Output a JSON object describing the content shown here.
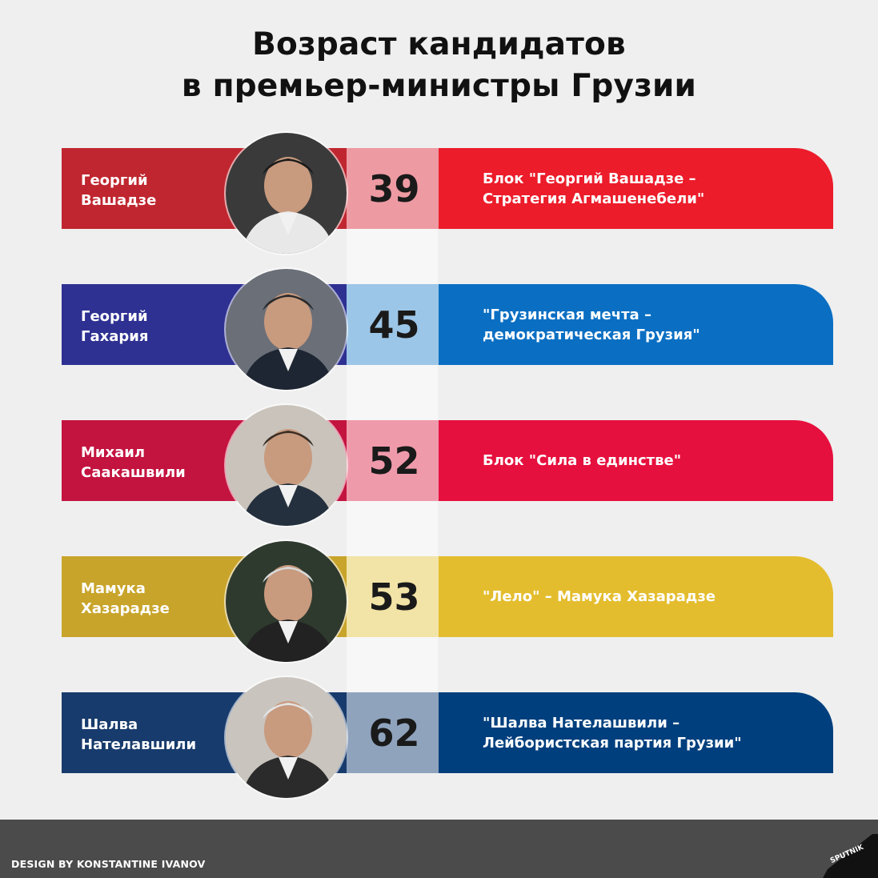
{
  "title": {
    "line1": "Возраст кандидатов",
    "line2": "в премьер-министры Грузии"
  },
  "candidates": [
    {
      "name_line1": "Георгий",
      "name_line2": "Вашадзе",
      "age": "39",
      "party_line1": "Блок \"Георгий Вашадзе –",
      "party_line2": "Стратегия Агмашенебели\"",
      "photo": "candidate-portrait-photo",
      "colors": {
        "left": "#c0262f",
        "age_bg": "#ee9aa3",
        "right": "#ec1c2a"
      }
    },
    {
      "name_line1": "Георгий",
      "name_line2": "Гахария",
      "age": "45",
      "party_line1": "\"Грузинская мечта –",
      "party_line2": "демократическая Грузия\"",
      "photo": "candidate-portrait-photo",
      "colors": {
        "left": "#2e3192",
        "age_bg": "#9cc6e8",
        "right": "#0a6fc3"
      }
    },
    {
      "name_line1": "Михаил",
      "name_line2": "Саакашвили",
      "age": "52",
      "party_line1": "Блок \"Сила в единстве\"",
      "party_line2": "",
      "photo": "candidate-portrait-photo",
      "colors": {
        "left": "#c3133f",
        "age_bg": "#ef9aab",
        "right": "#e6103e"
      }
    },
    {
      "name_line1": "Мамука",
      "name_line2": "Хазарадзе",
      "age": "53",
      "party_line1": "\"Лело\" – Мамука Хазарадзе",
      "party_line2": "",
      "photo": "candidate-portrait-photo",
      "colors": {
        "left": "#c8a42a",
        "age_bg": "#f2e3a6",
        "right": "#e4bd2e"
      }
    },
    {
      "name_line1": "Шалва",
      "name_line2": "Нателавшили",
      "age": "62",
      "party_line1": "\"Шалва Нателашвили –",
      "party_line2": "Лейбористская партия Грузии\"",
      "photo": "candidate-portrait-photo",
      "colors": {
        "left": "#173b6c",
        "age_bg": "#8fa3bd",
        "right": "#003f7d"
      }
    }
  ],
  "footer": {
    "credit": "DESIGN BY KONSTANTINE IVANOV",
    "logo": "SPUTNIK"
  }
}
